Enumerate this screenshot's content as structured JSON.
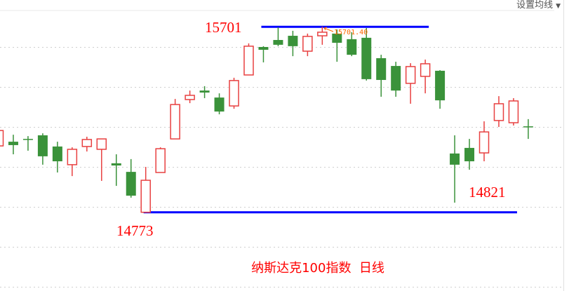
{
  "toolbar": {
    "ma_setting_label": "设置均线",
    "ma_setting_icon": "caret-down-icon"
  },
  "chart_data": {
    "type": "candlestick",
    "title": "纳斯达克100指数  日线",
    "ylim": [
      14400,
      15800
    ],
    "gridlines_y": [
      15600,
      15400,
      15200,
      15000,
      14800,
      14600,
      14400
    ],
    "grid": "horizontal-dotted",
    "up_color": "#e84040",
    "down_color": "#3a923a",
    "candles": [
      {
        "o": 15105,
        "h": 15185,
        "l": 15102,
        "c": 15182
      },
      {
        "o": 15126,
        "h": 15161,
        "l": 15063,
        "c": 15109
      },
      {
        "o": 15140,
        "h": 15154,
        "l": 15081,
        "c": 15137
      },
      {
        "o": 15158,
        "h": 15168,
        "l": 15011,
        "c": 15053
      },
      {
        "o": 15102,
        "h": 15126,
        "l": 14972,
        "c": 15028
      },
      {
        "o": 15011,
        "h": 15098,
        "l": 14954,
        "c": 15088
      },
      {
        "o": 15102,
        "h": 15151,
        "l": 15077,
        "c": 15137
      },
      {
        "o": 15088,
        "h": 15140,
        "l": 14930,
        "c": 15140
      },
      {
        "o": 15018,
        "h": 15063,
        "l": 14905,
        "c": 15007
      },
      {
        "o": 14975,
        "h": 15039,
        "l": 14846,
        "c": 14856
      },
      {
        "o": 14773,
        "h": 15000,
        "l": 14773,
        "c": 14933
      },
      {
        "o": 14972,
        "h": 15098,
        "l": 14972,
        "c": 15091
      },
      {
        "o": 15140,
        "h": 15340,
        "l": 15140,
        "c": 15312
      },
      {
        "o": 15337,
        "h": 15382,
        "l": 15319,
        "c": 15358
      },
      {
        "o": 15382,
        "h": 15404,
        "l": 15344,
        "c": 15372
      },
      {
        "o": 15347,
        "h": 15368,
        "l": 15263,
        "c": 15277
      },
      {
        "o": 15305,
        "h": 15446,
        "l": 15291,
        "c": 15432
      },
      {
        "o": 15460,
        "h": 15618,
        "l": 15460,
        "c": 15604
      },
      {
        "o": 15600,
        "h": 15604,
        "l": 15523,
        "c": 15586
      },
      {
        "o": 15635,
        "h": 15698,
        "l": 15604,
        "c": 15611
      },
      {
        "o": 15656,
        "h": 15681,
        "l": 15554,
        "c": 15604
      },
      {
        "o": 15579,
        "h": 15667,
        "l": 15554,
        "c": 15653
      },
      {
        "o": 15656,
        "h": 15701.4,
        "l": 15611,
        "c": 15674
      },
      {
        "o": 15667,
        "h": 15688,
        "l": 15526,
        "c": 15621
      },
      {
        "o": 15639,
        "h": 15674,
        "l": 15554,
        "c": 15561
      },
      {
        "o": 15646,
        "h": 15695,
        "l": 15432,
        "c": 15439
      },
      {
        "o": 15544,
        "h": 15561,
        "l": 15351,
        "c": 15435
      },
      {
        "o": 15505,
        "h": 15526,
        "l": 15351,
        "c": 15382
      },
      {
        "o": 15418,
        "h": 15519,
        "l": 15316,
        "c": 15502
      },
      {
        "o": 15453,
        "h": 15537,
        "l": 15368,
        "c": 15516
      },
      {
        "o": 15481,
        "h": 15484,
        "l": 15291,
        "c": 15333
      },
      {
        "o": 15067,
        "h": 15158,
        "l": 14821,
        "c": 15011
      },
      {
        "o": 15095,
        "h": 15140,
        "l": 14986,
        "c": 15028
      },
      {
        "o": 15070,
        "h": 15228,
        "l": 15028,
        "c": 15175
      },
      {
        "o": 15232,
        "h": 15354,
        "l": 15200,
        "c": 15316
      },
      {
        "o": 15221,
        "h": 15344,
        "l": 15207,
        "c": 15330
      },
      {
        "o": 15203,
        "h": 15239,
        "l": 15140,
        "c": 15200
      }
    ],
    "high_marker": {
      "text": "15701.40",
      "value": 15701.4,
      "color": "#ff6600"
    },
    "reference_lines": [
      {
        "value": 15701,
        "from_candle": 18,
        "to_candle": 29,
        "color": "#0000ff"
      },
      {
        "value": 14773,
        "from_candle": 10,
        "to_candle": 35,
        "color": "#0000ff"
      }
    ],
    "annotations": [
      {
        "text": "15701",
        "value": 15701,
        "color": "#ff0000"
      },
      {
        "text": "14773",
        "value": 14773,
        "color": "#ff0000"
      },
      {
        "text": "14821",
        "value": 14821,
        "color": "#ff0000"
      }
    ]
  }
}
